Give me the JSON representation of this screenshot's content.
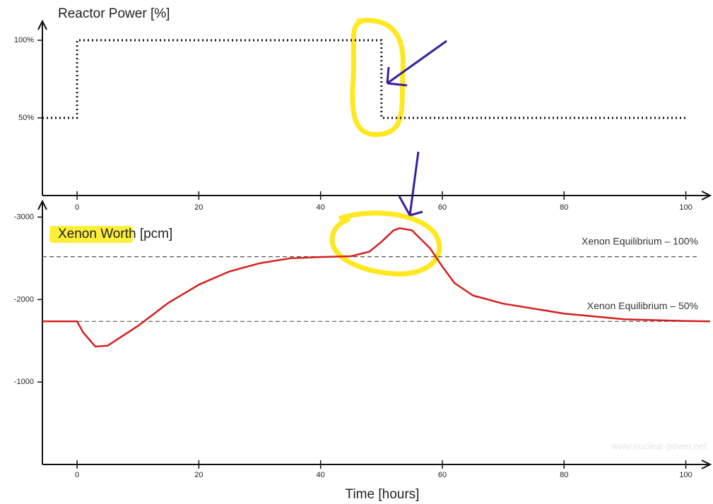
{
  "chart_data": [
    {
      "type": "line",
      "title": "Reactor Power [%]",
      "x": [
        -5.7,
        0,
        0,
        50,
        50,
        100
      ],
      "series": [
        {
          "name": "Reactor Power",
          "color": "#111111",
          "linestyle": "dotted",
          "values": [
            50,
            50,
            100,
            100,
            50,
            50
          ]
        }
      ],
      "xlim": [
        -5.7,
        104
      ],
      "ylim": [
        0,
        110
      ],
      "xticks": [
        0,
        20,
        40,
        60,
        80,
        100
      ],
      "yticks": [
        {
          "value": 50,
          "label": "50%"
        },
        {
          "value": 100,
          "label": "100%"
        }
      ]
    },
    {
      "type": "line",
      "title": "Xenon Worth [pcm]",
      "xlabel": "Time [hours]",
      "source": "www.nuclear-power.net",
      "x": [
        -5.7,
        0,
        1,
        3,
        5,
        10,
        15,
        20,
        25,
        30,
        35,
        40,
        45,
        48,
        50,
        52,
        53,
        55,
        58,
        60,
        62,
        65,
        70,
        80,
        90,
        100,
        104
      ],
      "series": [
        {
          "name": "Xenon Worth",
          "color": "#d71e1e",
          "linestyle": "solid",
          "values": [
            -1735,
            -1735,
            -1600,
            -1430,
            -1440,
            -1680,
            -1960,
            -2180,
            -2340,
            -2440,
            -2500,
            -2515,
            -2525,
            -2580,
            -2700,
            -2840,
            -2865,
            -2840,
            -2620,
            -2400,
            -2200,
            -2050,
            -1950,
            -1830,
            -1760,
            -1740,
            -1735
          ]
        }
      ],
      "hlines": [
        {
          "label": "Xenon Equilibrium – 100%",
          "value": -2520,
          "color": "#555555"
        },
        {
          "label": "Xenon Equilibrium – 50%",
          "value": -1735,
          "color": "#555555"
        }
      ],
      "xlim": [
        -5.7,
        104
      ],
      "ylim": [
        0,
        -3150
      ],
      "xticks": [
        0,
        20,
        40,
        60,
        80,
        100
      ],
      "yticks": [
        -3000,
        -2000,
        -1000
      ]
    }
  ]
}
